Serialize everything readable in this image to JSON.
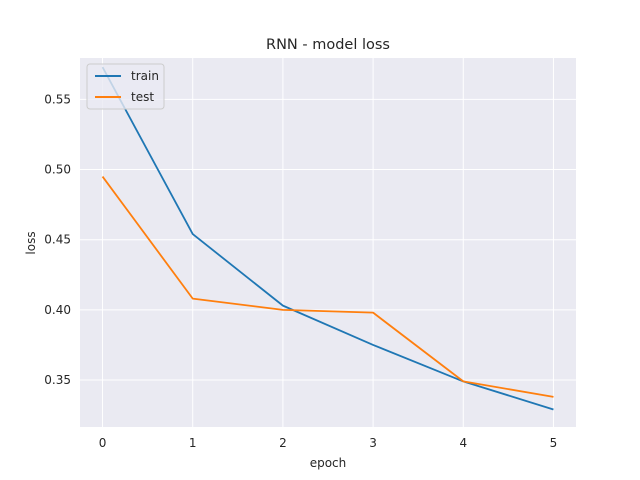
{
  "chart_data": {
    "type": "line",
    "title": "RNN - model loss",
    "xlabel": "epoch",
    "ylabel": "loss",
    "x": [
      0,
      1,
      2,
      3,
      4,
      5
    ],
    "x_ticks": [
      "0",
      "1",
      "2",
      "3",
      "4",
      "5"
    ],
    "y_ticks": [
      "0.35",
      "0.40",
      "0.45",
      "0.50",
      "0.55"
    ],
    "y_tick_values": [
      0.35,
      0.4,
      0.45,
      0.5,
      0.55
    ],
    "xlim": [
      -0.25,
      5.25
    ],
    "ylim": [
      0.3165,
      0.5795
    ],
    "grid": true,
    "legend_position": "top-left",
    "background": "#eaeaf2",
    "series": [
      {
        "name": "train",
        "color": "#1f77b4",
        "values": [
          0.573,
          0.454,
          0.403,
          0.375,
          0.349,
          0.329
        ]
      },
      {
        "name": "test",
        "color": "#ff7f0e",
        "values": [
          0.495,
          0.408,
          0.4,
          0.398,
          0.349,
          0.338
        ]
      }
    ]
  }
}
